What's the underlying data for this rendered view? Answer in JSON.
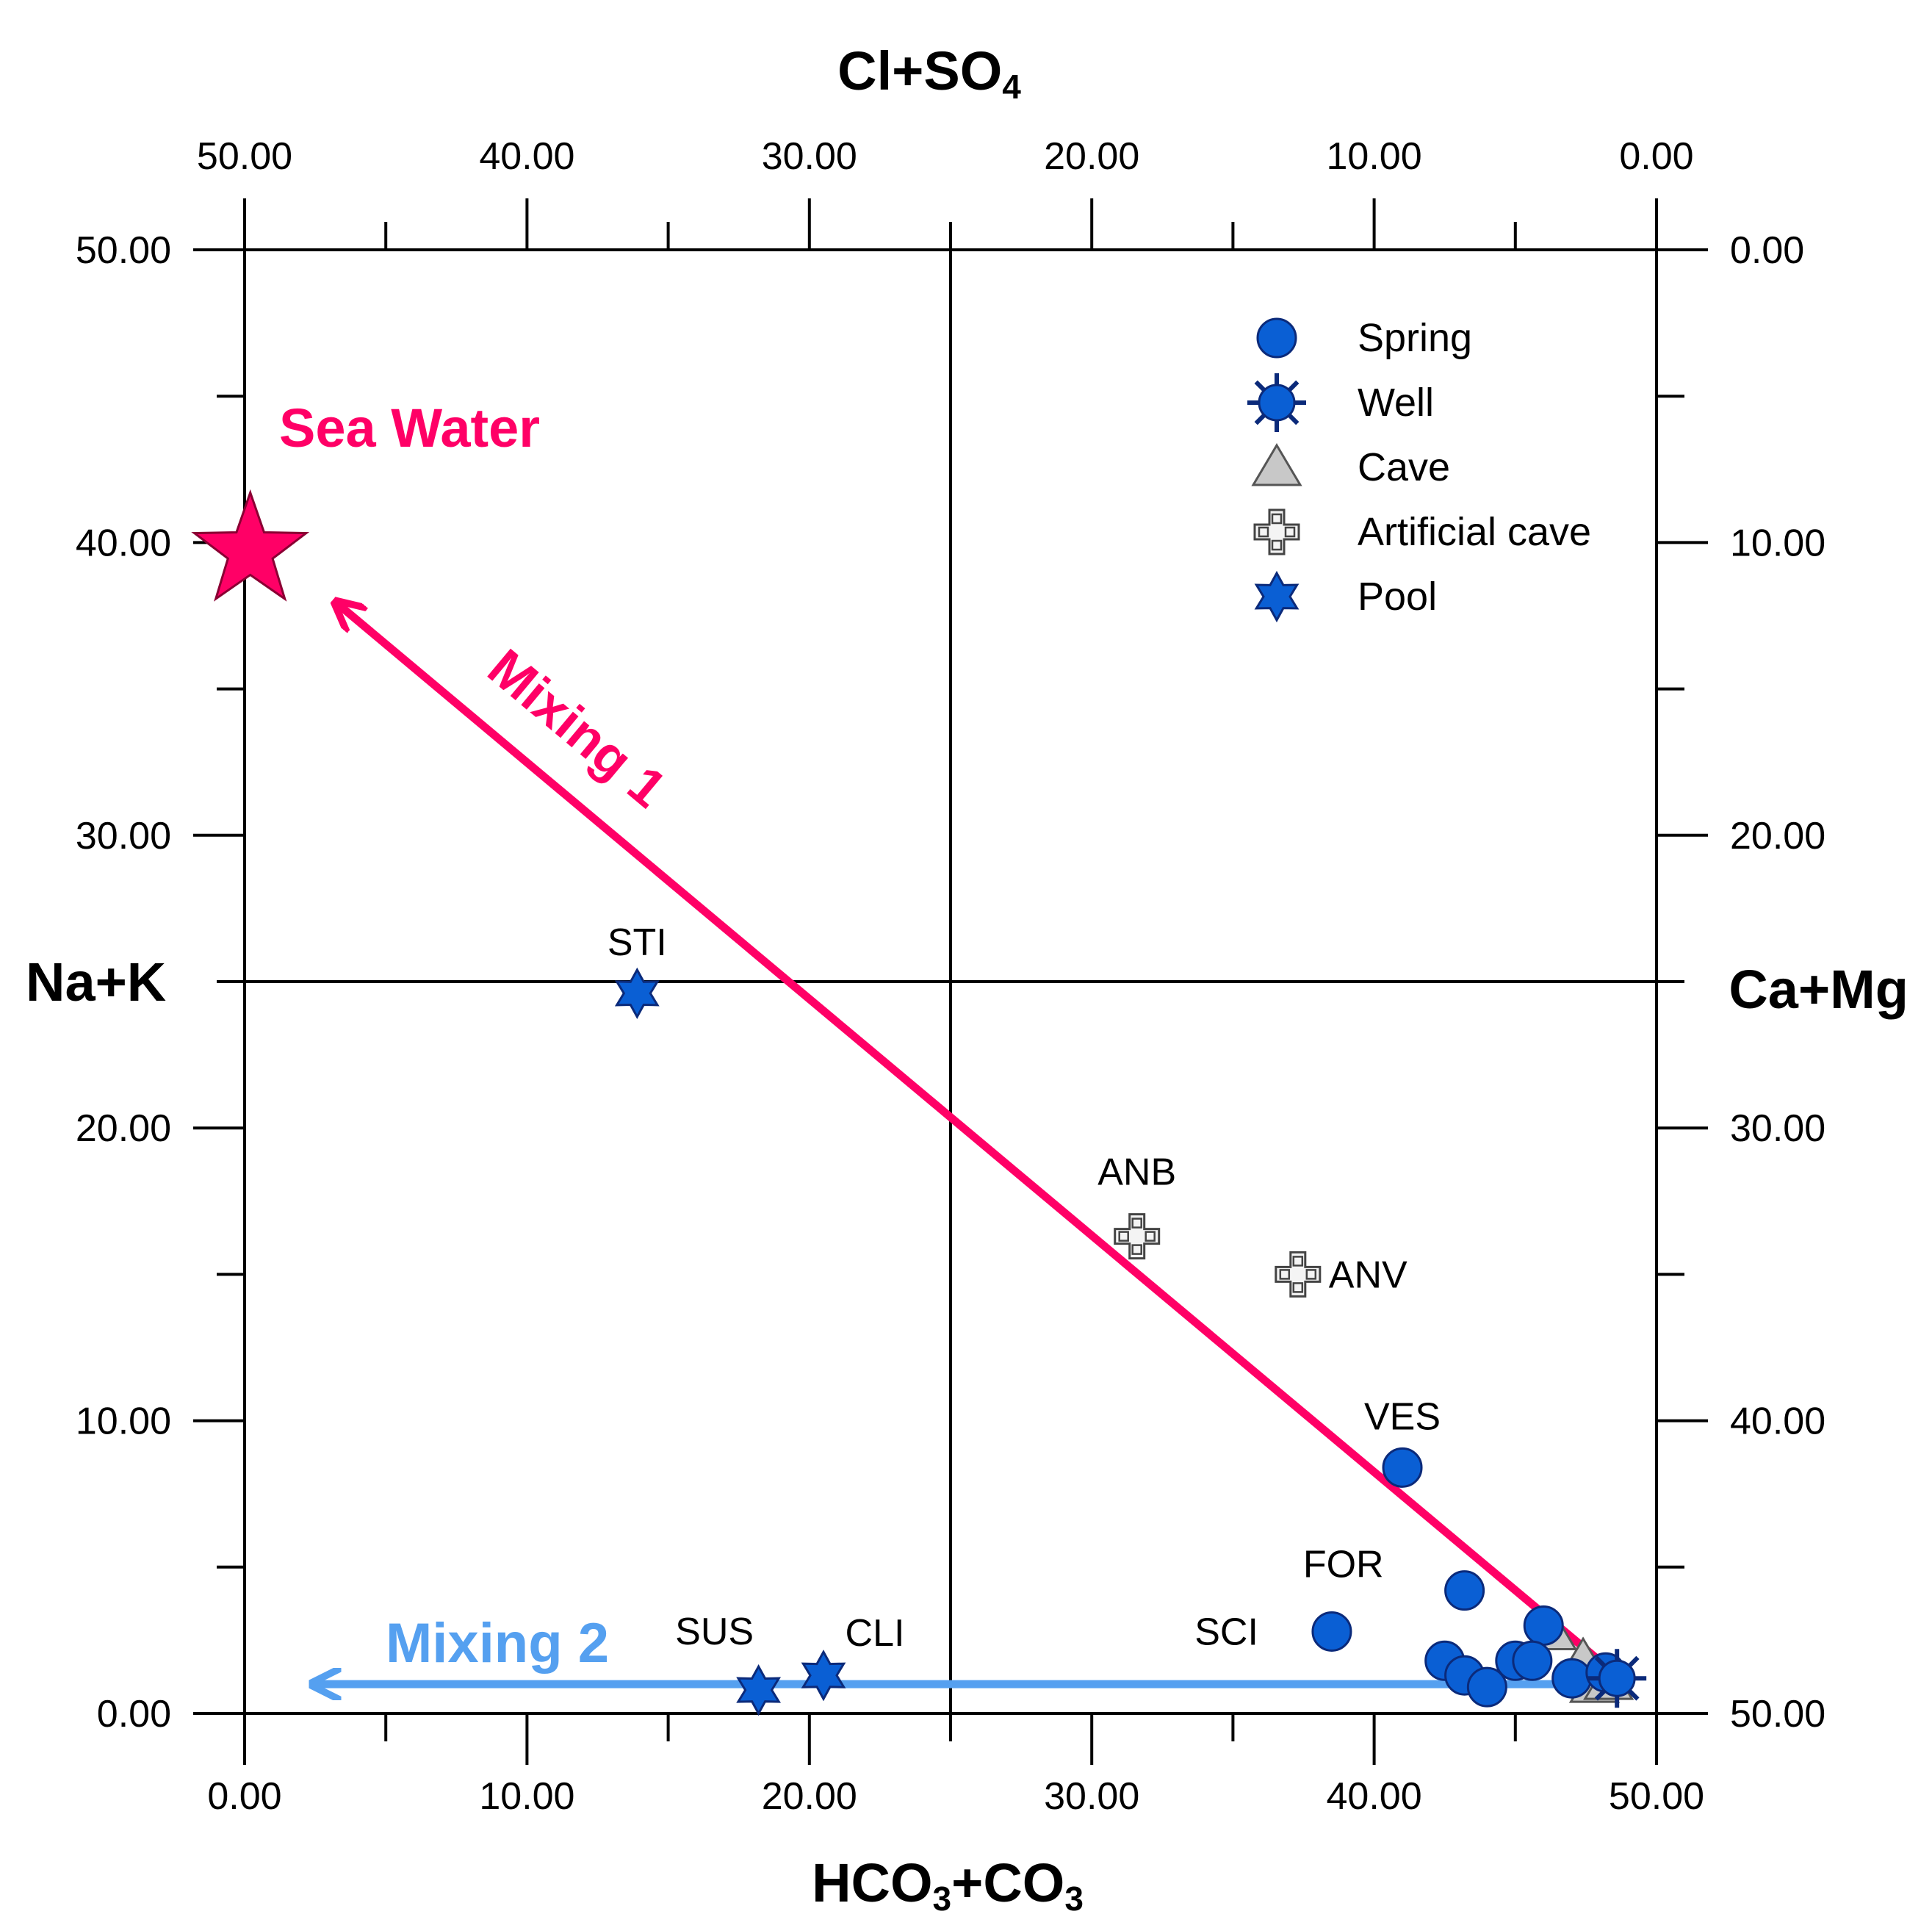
{
  "chart_data": {
    "type": "scatter",
    "title": "",
    "axes": {
      "bottom": {
        "label_main": "HCO",
        "label_sub1": "3",
        "label_mid": "+CO",
        "label_sub2": "3",
        "range": [
          0,
          50
        ],
        "ticks": [
          "0.00",
          "10.00",
          "20.00",
          "30.00",
          "40.00",
          "50.00"
        ]
      },
      "top": {
        "label_main": "Cl+SO",
        "label_sub1": "4",
        "range": [
          50,
          0
        ],
        "ticks": [
          "50.00",
          "40.00",
          "30.00",
          "20.00",
          "10.00",
          "0.00"
        ]
      },
      "left": {
        "label": "Na+K",
        "range": [
          0,
          50
        ],
        "ticks": [
          "0.00",
          "10.00",
          "20.00",
          "30.00",
          "40.00",
          "50.00"
        ]
      },
      "right": {
        "label": "Ca+Mg",
        "range": [
          50,
          0
        ],
        "ticks": [
          "50.00",
          "40.00",
          "30.00",
          "20.00",
          "10.00",
          "0.00"
        ]
      },
      "center_lines": {
        "x": 25,
        "y": 25
      }
    },
    "legend": {
      "position": "top-right",
      "entries": [
        {
          "name": "Spring",
          "marker": "circle"
        },
        {
          "name": "Well",
          "marker": "starburst"
        },
        {
          "name": "Cave",
          "marker": "triangle"
        },
        {
          "name": "Artificial cave",
          "marker": "cross"
        },
        {
          "name": "Pool",
          "marker": "hexagram"
        }
      ]
    },
    "series": [
      {
        "name": "Spring",
        "points": [
          {
            "x": 41.0,
            "y": 8.4,
            "label": "VES"
          },
          {
            "x": 43.2,
            "y": 4.2,
            "label": "FOR"
          },
          {
            "x": 38.5,
            "y": 2.8,
            "label": "SCI"
          },
          {
            "x": 46.0,
            "y": 3.0,
            "label": ""
          },
          {
            "x": 42.5,
            "y": 1.8,
            "label": ""
          },
          {
            "x": 43.2,
            "y": 1.3,
            "label": ""
          },
          {
            "x": 44.0,
            "y": 0.9,
            "label": ""
          },
          {
            "x": 45.0,
            "y": 1.8,
            "label": ""
          },
          {
            "x": 45.6,
            "y": 1.8,
            "label": ""
          },
          {
            "x": 47.0,
            "y": 1.2,
            "label": ""
          },
          {
            "x": 48.2,
            "y": 1.4,
            "label": ""
          }
        ]
      },
      {
        "name": "Well",
        "points": [
          {
            "x": 48.6,
            "y": 1.2,
            "label": ""
          }
        ]
      },
      {
        "name": "Cave",
        "points": [
          {
            "x": 46.3,
            "y": 2.8,
            "label": ""
          },
          {
            "x": 47.4,
            "y": 1.8,
            "label": ""
          },
          {
            "x": 47.8,
            "y": 1.0,
            "label": ""
          },
          {
            "x": 48.3,
            "y": 1.1,
            "label": ""
          }
        ]
      },
      {
        "name": "Artificial cave",
        "points": [
          {
            "x": 31.6,
            "y": 16.3,
            "label": "ANB"
          },
          {
            "x": 37.3,
            "y": 15.0,
            "label": "ANV"
          }
        ]
      },
      {
        "name": "Pool",
        "points": [
          {
            "x": 13.9,
            "y": 24.6,
            "label": "STI"
          },
          {
            "x": 18.2,
            "y": 0.8,
            "label": "SUS"
          },
          {
            "x": 20.5,
            "y": 1.3,
            "label": "CLI"
          }
        ]
      }
    ],
    "end_members": [
      {
        "name": "Sea Water",
        "x": 0.2,
        "y": 39.7
      }
    ],
    "mixing_lines": [
      {
        "label": "Mixing 1",
        "color": "#ff0066",
        "from": {
          "x": 48.6,
          "y": 1.3
        },
        "to": {
          "x": 3.3,
          "y": 37.9
        }
      },
      {
        "label": "Mixing 2",
        "color": "#55a0f0",
        "from": {
          "x": 46.5,
          "y": 1.0
        },
        "to": {
          "x": 2.5,
          "y": 1.0
        }
      }
    ]
  },
  "colors": {
    "marker_blue": "#0a5fd4",
    "marker_edge": "#0b2a7a",
    "cave_fill": "#c8c8c8",
    "sea_water": "#ff0066",
    "mixing2": "#55a0f0"
  }
}
